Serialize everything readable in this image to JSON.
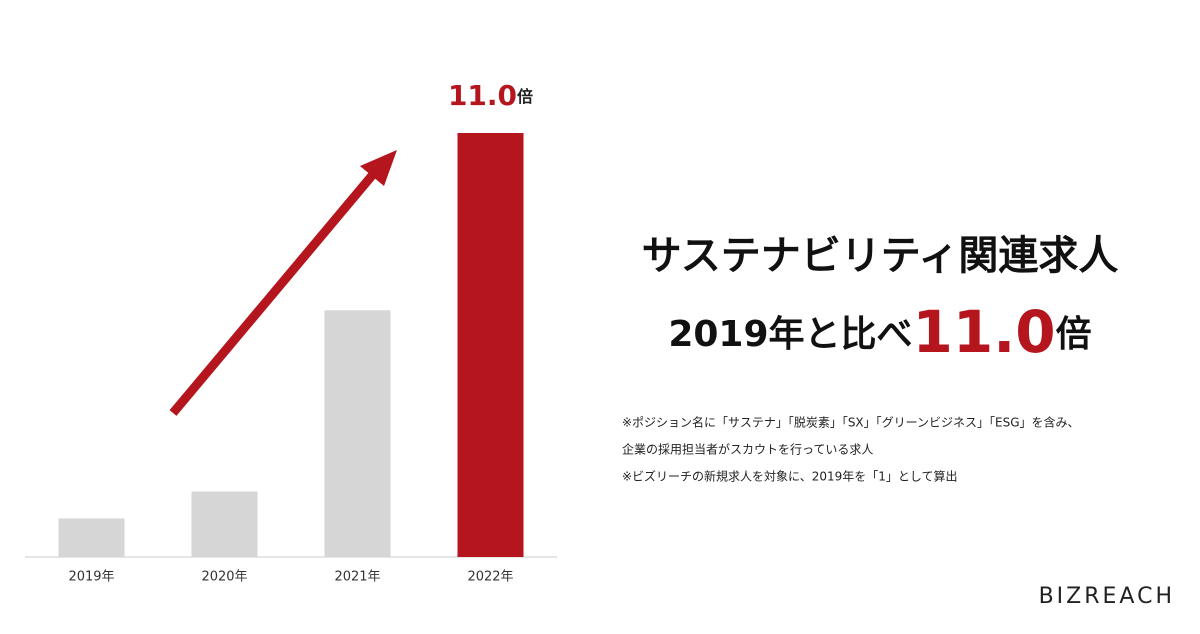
{
  "chart_data": {
    "type": "bar",
    "categories": [
      "2019年",
      "2020年",
      "2021年",
      "2022年"
    ],
    "values": [
      1,
      1.7,
      6.4,
      11.0
    ],
    "value_labels": [
      null,
      null,
      null,
      "11.0倍"
    ],
    "colors": [
      "#d6d6d6",
      "#d6d6d6",
      "#d6d6d6",
      "#b5151d"
    ],
    "highlight_color": "#b5151d"
  },
  "headline": [
    "サステナビリティ関連求人",
    "2019年と比べ11.0倍"
  ],
  "notes": [
    "※ポジション名に「サステナ」「脱炭素」「SX」「グリーンビジネス」「ESG」を含み、",
    "企業の採用担当者がスカウトを行っている求人",
    "※ビズリーチの新規求人を対象に、2019年を「1」として算出"
  ],
  "logo": "BIZREACH"
}
